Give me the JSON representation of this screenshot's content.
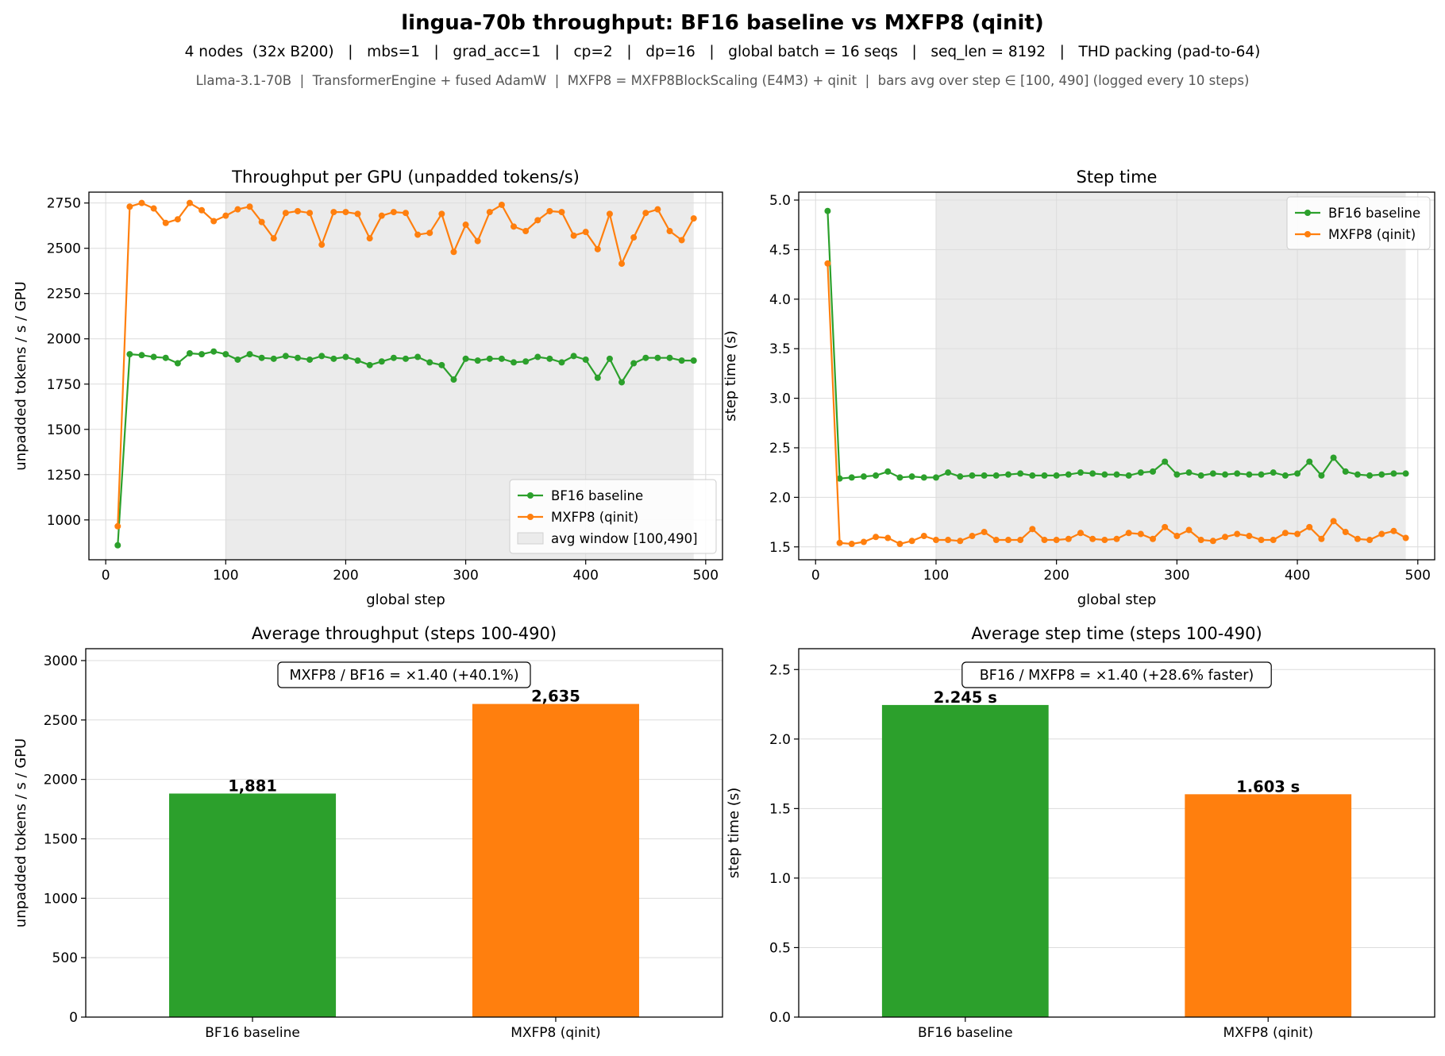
{
  "figure": {
    "title": "lingua-70b throughput:  BF16 baseline  vs  MXFP8 (qinit)",
    "subtitle": "4 nodes  (32x B200)   |   mbs=1   |   grad_acc=1   |   cp=2   |   dp=16   |   global batch = 16 seqs   |   seq_len = 8192   |   THD packing (pad-to-64)",
    "subtitle2": "Llama-3.1-70B  |  TransformerEngine + fused AdamW  |  MXFP8 = MXFP8BlockScaling (E4M3) + qinit  |  bars avg over step ∈ [100, 490] (logged every 10 steps)"
  },
  "colors": {
    "bf16": "#2ca02c",
    "mxfp8": "#ff7f0e",
    "window": "#ebebeb"
  },
  "chart_data": [
    {
      "type": "line",
      "title": "Throughput per GPU (unpadded tokens/s)",
      "xlabel": "global step",
      "ylabel": "unpadded tokens / s / GPU",
      "xlim": [
        -14,
        514
      ],
      "ylim": [
        780,
        2810
      ],
      "xticks": [
        0,
        100,
        200,
        300,
        400,
        500
      ],
      "yticks": [
        1000,
        1250,
        1500,
        1750,
        2000,
        2250,
        2500,
        2750
      ],
      "grid": true,
      "legend_position": "lower-right",
      "shaded_window": {
        "x": [
          100,
          490
        ],
        "label": "avg window [100,490]"
      },
      "x": [
        10,
        20,
        30,
        40,
        50,
        60,
        70,
        80,
        90,
        100,
        110,
        120,
        130,
        140,
        150,
        160,
        170,
        180,
        190,
        200,
        210,
        220,
        230,
        240,
        250,
        260,
        270,
        280,
        290,
        300,
        310,
        320,
        330,
        340,
        350,
        360,
        370,
        380,
        390,
        400,
        410,
        420,
        430,
        440,
        450,
        460,
        470,
        480,
        490
      ],
      "series": [
        {
          "name": "BF16 baseline",
          "color_key": "bf16",
          "values": [
            860,
            1915,
            1910,
            1900,
            1895,
            1865,
            1920,
            1915,
            1930,
            1915,
            1885,
            1915,
            1895,
            1890,
            1905,
            1895,
            1885,
            1905,
            1890,
            1900,
            1880,
            1855,
            1875,
            1895,
            1890,
            1900,
            1870,
            1855,
            1775,
            1890,
            1880,
            1890,
            1890,
            1870,
            1875,
            1900,
            1890,
            1870,
            1905,
            1885,
            1785,
            1890,
            1760,
            1865,
            1895,
            1895,
            1895,
            1880,
            1880
          ]
        },
        {
          "name": "MXFP8 (qinit)",
          "color_key": "mxfp8",
          "values": [
            965,
            2730,
            2750,
            2720,
            2640,
            2660,
            2750,
            2710,
            2650,
            2680,
            2715,
            2730,
            2645,
            2555,
            2695,
            2705,
            2695,
            2520,
            2700,
            2700,
            2690,
            2555,
            2680,
            2700,
            2695,
            2575,
            2585,
            2690,
            2480,
            2630,
            2540,
            2700,
            2740,
            2620,
            2595,
            2655,
            2705,
            2700,
            2570,
            2590,
            2495,
            2690,
            2415,
            2560,
            2695,
            2715,
            2595,
            2545,
            2665
          ]
        }
      ]
    },
    {
      "type": "line",
      "title": "Step time",
      "xlabel": "global step",
      "ylabel": "step time (s)",
      "xlim": [
        -14,
        514
      ],
      "ylim": [
        1.37,
        5.08
      ],
      "xticks": [
        0,
        100,
        200,
        300,
        400,
        500
      ],
      "yticks": [
        1.5,
        2.0,
        2.5,
        3.0,
        3.5,
        4.0,
        4.5,
        5.0
      ],
      "grid": true,
      "legend_position": "upper-right",
      "shaded_window": {
        "x": [
          100,
          490
        ],
        "label": ""
      },
      "x": [
        10,
        20,
        30,
        40,
        50,
        60,
        70,
        80,
        90,
        100,
        110,
        120,
        130,
        140,
        150,
        160,
        170,
        180,
        190,
        200,
        210,
        220,
        230,
        240,
        250,
        260,
        270,
        280,
        290,
        300,
        310,
        320,
        330,
        340,
        350,
        360,
        370,
        380,
        390,
        400,
        410,
        420,
        430,
        440,
        450,
        460,
        470,
        480,
        490
      ],
      "series": [
        {
          "name": "BF16 baseline",
          "color_key": "bf16",
          "values": [
            4.89,
            2.19,
            2.2,
            2.21,
            2.22,
            2.26,
            2.2,
            2.21,
            2.2,
            2.2,
            2.25,
            2.21,
            2.22,
            2.22,
            2.22,
            2.23,
            2.24,
            2.22,
            2.22,
            2.22,
            2.23,
            2.25,
            2.24,
            2.23,
            2.23,
            2.22,
            2.25,
            2.26,
            2.36,
            2.23,
            2.25,
            2.22,
            2.24,
            2.23,
            2.24,
            2.23,
            2.23,
            2.25,
            2.22,
            2.24,
            2.36,
            2.22,
            2.4,
            2.26,
            2.23,
            2.22,
            2.23,
            2.24,
            2.24
          ]
        },
        {
          "name": "MXFP8 (qinit)",
          "color_key": "mxfp8",
          "values": [
            4.36,
            1.54,
            1.53,
            1.55,
            1.6,
            1.59,
            1.53,
            1.56,
            1.61,
            1.57,
            1.57,
            1.56,
            1.61,
            1.65,
            1.57,
            1.57,
            1.57,
            1.68,
            1.57,
            1.57,
            1.58,
            1.64,
            1.58,
            1.57,
            1.58,
            1.64,
            1.63,
            1.58,
            1.7,
            1.61,
            1.67,
            1.57,
            1.56,
            1.6,
            1.63,
            1.61,
            1.57,
            1.57,
            1.64,
            1.63,
            1.7,
            1.58,
            1.76,
            1.65,
            1.58,
            1.57,
            1.63,
            1.66,
            1.59
          ]
        }
      ]
    },
    {
      "type": "bar",
      "title": "Average throughput (steps 100-490)",
      "ylabel": "unpadded tokens / s / GPU",
      "ylim": [
        0,
        3100
      ],
      "yticks": [
        0,
        500,
        1000,
        1500,
        2000,
        2500,
        3000
      ],
      "grid": true,
      "categories": [
        "BF16 baseline",
        "MXFP8 (qinit)"
      ],
      "values": [
        1881,
        2635
      ],
      "value_labels": [
        "1,881",
        "2,635"
      ],
      "color_keys": [
        "bf16",
        "mxfp8"
      ],
      "annotation": "MXFP8 / BF16 = ×1.40  (+40.1%)"
    },
    {
      "type": "bar",
      "title": "Average step time (steps 100-490)",
      "ylabel": "step time (s)",
      "ylim": [
        0,
        2.65
      ],
      "yticks": [
        0.0,
        0.5,
        1.0,
        1.5,
        2.0,
        2.5
      ],
      "grid": true,
      "categories": [
        "BF16 baseline",
        "MXFP8 (qinit)"
      ],
      "values": [
        2.245,
        1.603
      ],
      "value_labels": [
        "2.245 s",
        "1.603 s"
      ],
      "color_keys": [
        "bf16",
        "mxfp8"
      ],
      "annotation": "BF16 / MXFP8 = ×1.40  (+28.6% faster)"
    }
  ]
}
